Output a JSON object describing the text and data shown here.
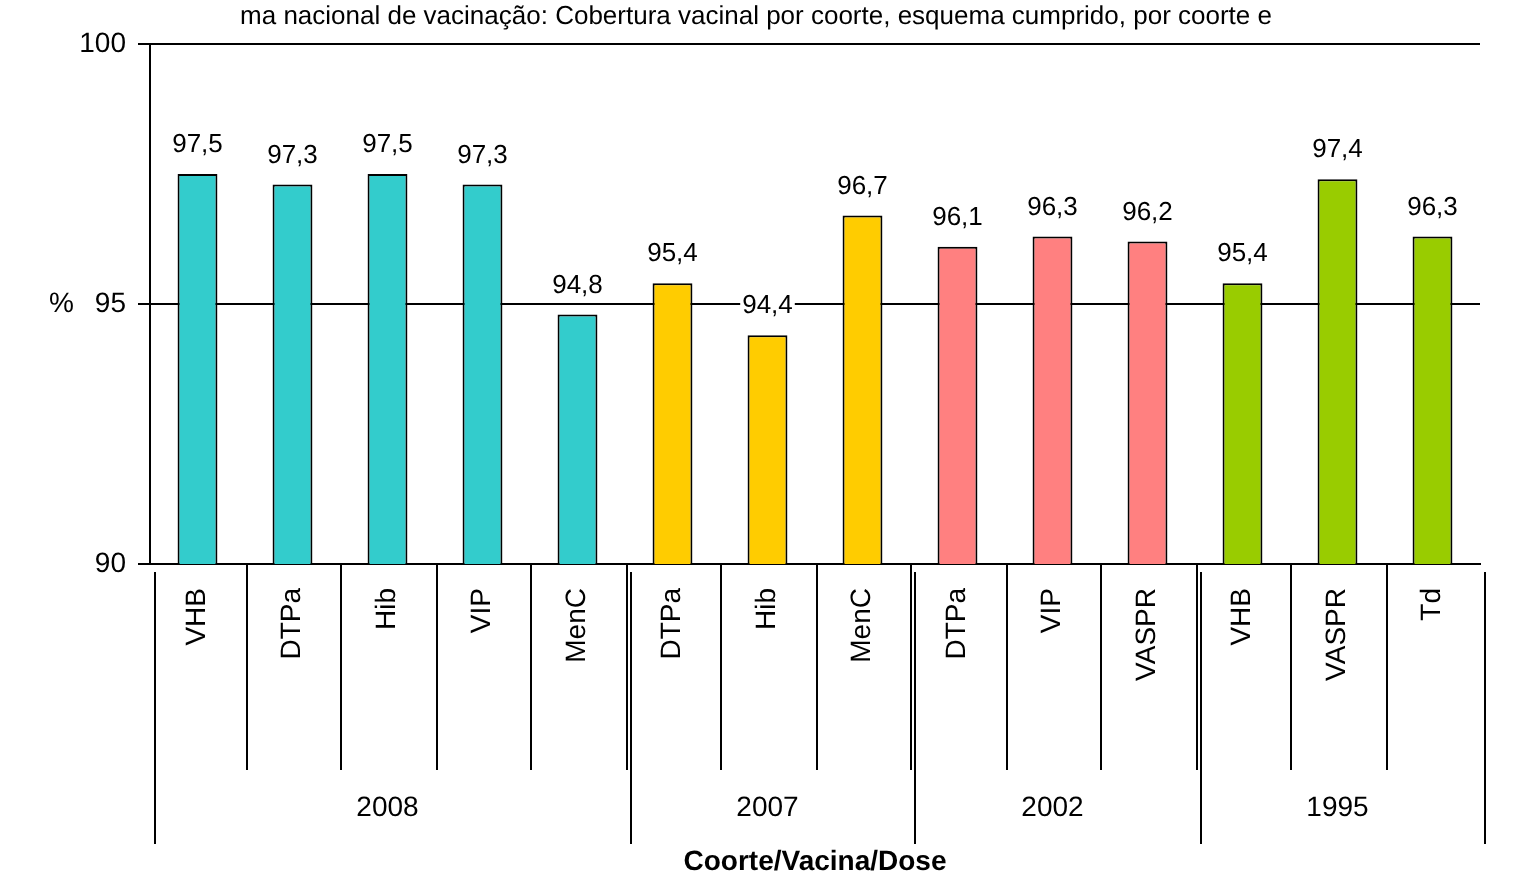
{
  "chart_data": {
    "type": "bar",
    "title": "ma nacional de vacinação: Cobertura vacinal por coorte, esquema cumprido, por coorte e",
    "annotations": [
      "Coorte/Vacina/Dose"
    ],
    "ylabel": "%",
    "categories": [
      "VHB",
      "DTPa",
      "Hib",
      "VIP",
      "MenC",
      "DTPa",
      "Hib",
      "MenC",
      "DTPa",
      "VIP",
      "VASPR",
      "VHB",
      "VASPR",
      "Td"
    ],
    "series": [
      {
        "name": "2008",
        "color": "#33cccc",
        "values": [
          97.5,
          97.3,
          97.5,
          97.3,
          94.8,
          null,
          null,
          null,
          null,
          null,
          null,
          null,
          null,
          null
        ],
        "value_labels": [
          "97,5",
          "97,3",
          "97,5",
          "97,3",
          "94,8",
          null,
          null,
          null,
          null,
          null,
          null,
          null,
          null,
          null
        ]
      },
      {
        "name": "2007",
        "color": "#ffcc00",
        "values": [
          null,
          null,
          null,
          null,
          null,
          95.4,
          94.4,
          96.7,
          null,
          null,
          null,
          null,
          null,
          null
        ],
        "value_labels": [
          null,
          null,
          null,
          null,
          null,
          "95,4",
          "94,4",
          "96,7",
          null,
          null,
          null,
          null,
          null,
          null
        ]
      },
      {
        "name": "2002",
        "color": "#ff8080",
        "values": [
          null,
          null,
          null,
          null,
          null,
          null,
          null,
          null,
          96.1,
          96.3,
          96.2,
          null,
          null,
          null
        ],
        "value_labels": [
          null,
          null,
          null,
          null,
          null,
          null,
          null,
          null,
          "96,1",
          "96,3",
          "96,2",
          null,
          null,
          null
        ]
      },
      {
        "name": "1995",
        "color": "#99cc00",
        "values": [
          null,
          null,
          null,
          null,
          null,
          null,
          null,
          null,
          null,
          null,
          null,
          95.4,
          97.4,
          96.3
        ],
        "value_labels": [
          null,
          null,
          null,
          null,
          null,
          null,
          null,
          null,
          null,
          null,
          null,
          "95,4",
          "97,4",
          "96,3"
        ]
      }
    ],
    "ylim": [
      90,
      100
    ],
    "yticks": [
      90,
      95,
      100
    ],
    "grid": "y",
    "legend": false
  }
}
